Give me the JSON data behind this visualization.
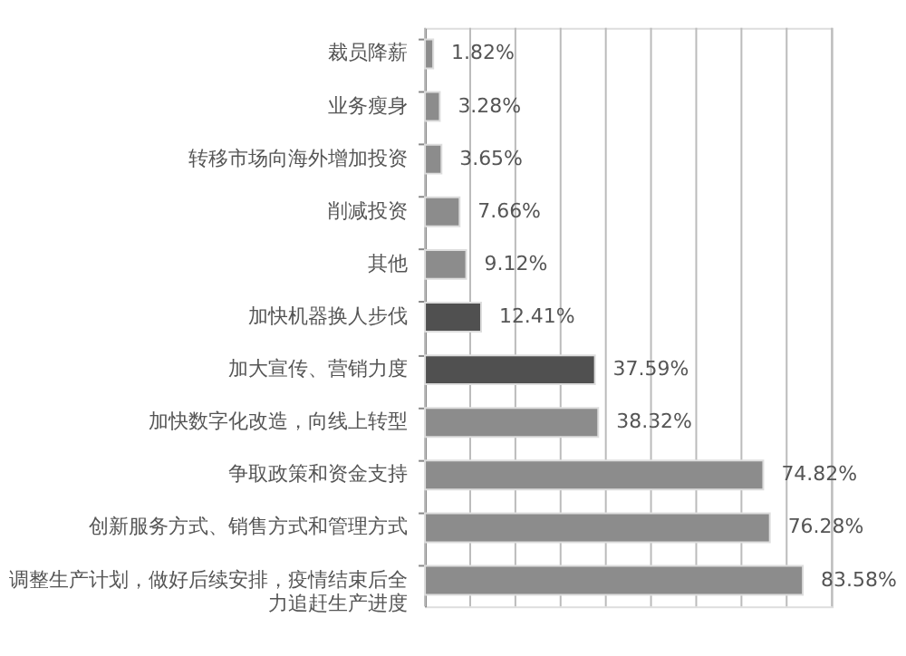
{
  "chart_data": {
    "type": "bar",
    "orientation": "horizontal",
    "categories": [
      "裁员降薪",
      "业务瘦身",
      "转移市场向海外增加投资",
      "削减投资",
      "其他",
      "加快机器换人步伐",
      "加大宣传、营销力度",
      "加快数字化改造，向线上转型",
      "争取政策和资金支持",
      "创新服务方式、销售方式和管理方式",
      "调整生产计划，做好后续安排，疫情结束后全力追赶生产进度"
    ],
    "values": [
      1.82,
      3.28,
      3.65,
      7.66,
      9.12,
      12.41,
      37.59,
      38.32,
      74.82,
      76.28,
      83.58
    ],
    "value_labels": [
      "1.82%",
      "3.28%",
      "3.65%",
      "7.66%",
      "9.12%",
      "12.41%",
      "37.59%",
      "38.32%",
      "74.82%",
      "76.28%",
      "83.58%"
    ],
    "colors": [
      "#8c8c8c",
      "#8c8c8c",
      "#8c8c8c",
      "#8c8c8c",
      "#8c8c8c",
      "#505050",
      "#505050",
      "#8c8c8c",
      "#8c8c8c",
      "#8c8c8c",
      "#8c8c8c"
    ],
    "xlim": [
      0,
      90
    ],
    "xticks": [
      {
        "value": 0,
        "label": null
      },
      {
        "value": 10,
        "label": null
      },
      {
        "value": 20,
        "label": null
      },
      {
        "value": 30,
        "label": null
      },
      {
        "value": 40,
        "label": null
      },
      {
        "value": 50,
        "label": null
      },
      {
        "value": 60,
        "label": null
      },
      {
        "value": 70,
        "label": null
      },
      {
        "value": 80,
        "label": null
      },
      {
        "value": 90,
        "label": null
      }
    ],
    "grid": "x",
    "tick_labels": "y"
  }
}
